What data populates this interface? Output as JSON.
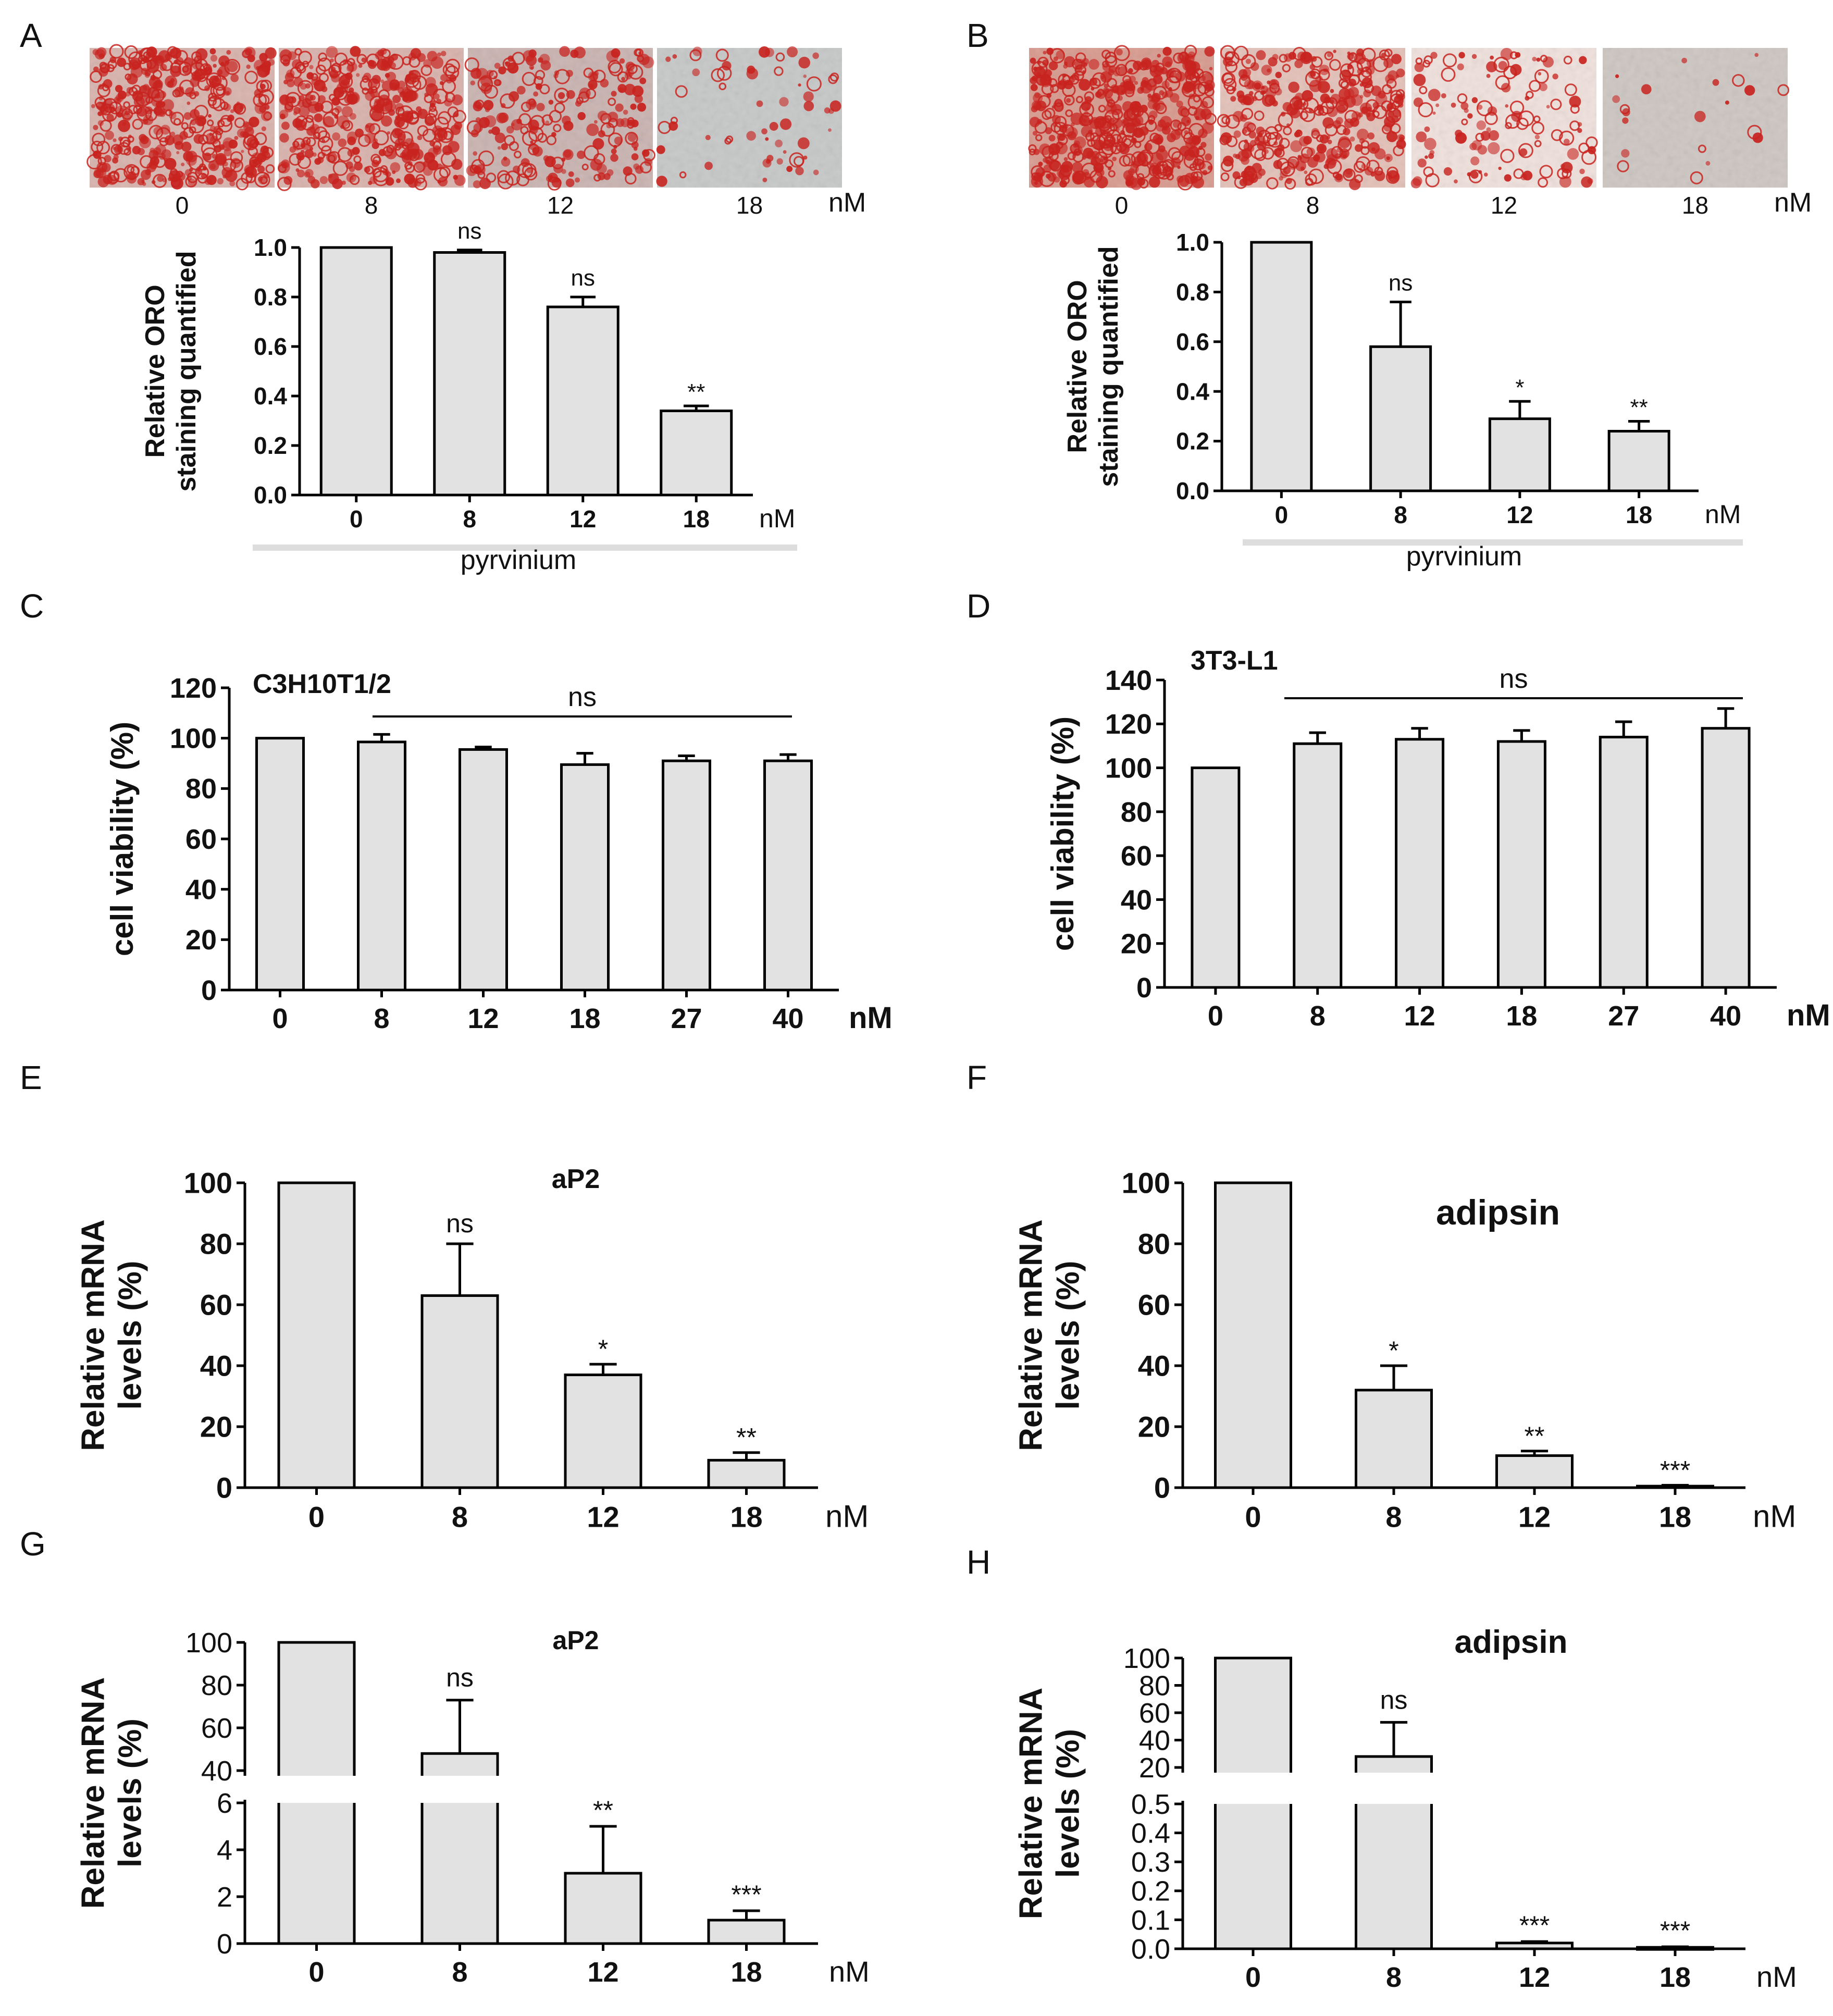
{
  "colors": {
    "bar_fill": "#e2e2e2",
    "bar_stroke": "#000000",
    "text": "#111111",
    "divider": "#dddddd",
    "stain_red": "#c8231f",
    "stain_bg_pink": "#ecd5d0",
    "stain_bg_grey": "#c9c4bf"
  },
  "panels": {
    "A": {
      "letter": "A",
      "micrographs": {
        "labels": [
          "0",
          "8",
          "12",
          "18"
        ],
        "unit": "nM",
        "red_density": [
          0.85,
          0.75,
          0.45,
          0.12
        ],
        "background": [
          "#d8b3ad",
          "#d9b2ac",
          "#c9b3b0",
          "#c6c8c8"
        ],
        "description": "Oil Red O stained C3H10T1/2 cells"
      },
      "group_label": "pyrvinium"
    },
    "B": {
      "letter": "B",
      "micrographs": {
        "labels": [
          "0",
          "8",
          "12",
          "18"
        ],
        "unit": "nM",
        "red_density": [
          0.95,
          0.7,
          0.25,
          0.04
        ],
        "background": [
          "#d89a8e",
          "#e3c1b8",
          "#f0e1dc",
          "#cdc6c2"
        ],
        "description": "Oil Red O stained 3T3-L1 cells"
      },
      "group_label": "pyrvinium"
    },
    "C": {
      "letter": "C"
    },
    "D": {
      "letter": "D"
    },
    "E": {
      "letter": "E"
    },
    "F": {
      "letter": "F"
    },
    "G": {
      "letter": "G"
    },
    "H": {
      "letter": "H"
    }
  },
  "chart_data": [
    {
      "panel": "A",
      "type": "bar",
      "ylabel": [
        "Relative ORO",
        "staining quantified"
      ],
      "xlabel_unit": "nM",
      "categories": [
        "0",
        "8",
        "12",
        "18"
      ],
      "values": [
        1.0,
        0.98,
        0.76,
        0.34
      ],
      "errors": [
        0,
        0.01,
        0.04,
        0.02
      ],
      "significance": [
        "",
        "ns",
        "ns",
        "**"
      ],
      "ylim": [
        0,
        1.0
      ],
      "yticks": [
        "0.0",
        "0.2",
        "0.4",
        "0.6",
        "0.8",
        "1.0"
      ],
      "group_label": "pyrvinium"
    },
    {
      "panel": "B",
      "type": "bar",
      "ylabel": [
        "Relative ORO",
        "staining quantified"
      ],
      "xlabel_unit": "nM",
      "categories": [
        "0",
        "8",
        "12",
        "18"
      ],
      "values": [
        1.0,
        0.58,
        0.29,
        0.24
      ],
      "errors": [
        0,
        0.18,
        0.07,
        0.04
      ],
      "significance": [
        "",
        "ns",
        "*",
        "**"
      ],
      "ylim": [
        0,
        1.0
      ],
      "yticks": [
        "0.0",
        "0.2",
        "0.4",
        "0.6",
        "0.8",
        "1.0"
      ],
      "group_label": "pyrvinium"
    },
    {
      "panel": "C",
      "type": "bar",
      "title": "C3H10T1/2",
      "ylabel": [
        "cell viability (%)"
      ],
      "xlabel_unit": "nM",
      "categories": [
        "0",
        "8",
        "12",
        "18",
        "27",
        "40"
      ],
      "values": [
        100,
        98.5,
        95.5,
        89.5,
        91,
        91
      ],
      "errors": [
        0,
        3,
        1,
        4.5,
        2,
        2.5
      ],
      "significance_line": "ns",
      "ylim": [
        0,
        120
      ],
      "yticks": [
        "0",
        "20",
        "40",
        "60",
        "80",
        "100",
        "120"
      ]
    },
    {
      "panel": "D",
      "type": "bar",
      "title": "3T3-L1",
      "ylabel": [
        "cell viability (%)"
      ],
      "xlabel_unit": "nM",
      "categories": [
        "0",
        "8",
        "12",
        "18",
        "27",
        "40"
      ],
      "values": [
        100,
        111,
        113,
        112,
        114,
        118
      ],
      "errors": [
        0,
        5,
        5,
        5,
        7,
        9
      ],
      "significance_line": "ns",
      "ylim": [
        0,
        140
      ],
      "yticks": [
        "0",
        "20",
        "40",
        "60",
        "80",
        "100",
        "120",
        "140"
      ]
    },
    {
      "panel": "E",
      "type": "bar",
      "title": "aP2",
      "ylabel": [
        "Relative mRNA",
        "levels (%)"
      ],
      "xlabel_unit": "nM",
      "categories": [
        "0",
        "8",
        "12",
        "18"
      ],
      "values": [
        100,
        63,
        37,
        9
      ],
      "errors": [
        0,
        17,
        3.5,
        2.5
      ],
      "significance": [
        "",
        "ns",
        "*",
        "**"
      ],
      "ylim": [
        0,
        100
      ],
      "yticks": [
        "0",
        "20",
        "40",
        "60",
        "80",
        "100"
      ]
    },
    {
      "panel": "F",
      "type": "bar",
      "title": "adipsin",
      "ylabel": [
        "Relative mRNA",
        "levels (%)"
      ],
      "xlabel_unit": "nM",
      "categories": [
        "0",
        "8",
        "12",
        "18"
      ],
      "values": [
        100,
        32,
        10.5,
        0.5
      ],
      "errors": [
        0,
        8,
        1.5,
        0.3
      ],
      "significance": [
        "",
        "*",
        "**",
        "***"
      ],
      "ylim": [
        0,
        100
      ],
      "yticks": [
        "0",
        "20",
        "40",
        "60",
        "80",
        "100"
      ]
    },
    {
      "panel": "G",
      "type": "bar",
      "title": "aP2",
      "ylabel": [
        "Relative mRNA",
        "levels (%)"
      ],
      "xlabel_unit": "nM",
      "categories": [
        "0",
        "8",
        "12",
        "18"
      ],
      "values": [
        100,
        48,
        3,
        1
      ],
      "errors": [
        0,
        25,
        2,
        0.4
      ],
      "significance": [
        "",
        "ns",
        "**",
        "***"
      ],
      "broken_axis": {
        "upper_range": [
          40,
          100
        ],
        "upper_ticks": [
          "40",
          "60",
          "80",
          "100"
        ],
        "lower_range": [
          0,
          6
        ],
        "lower_ticks": [
          "0",
          "2",
          "4",
          "6"
        ]
      }
    },
    {
      "panel": "H",
      "type": "bar",
      "title": "adipsin",
      "ylabel": [
        "Relative mRNA",
        "levels (%)"
      ],
      "xlabel_unit": "nM",
      "categories": [
        "0",
        "8",
        "12",
        "18"
      ],
      "values": [
        100,
        28,
        0.02,
        0.005
      ],
      "errors": [
        0,
        25,
        0.005,
        0.002
      ],
      "significance": [
        "",
        "ns",
        "***",
        "***"
      ],
      "broken_axis": {
        "upper_range": [
          20,
          100
        ],
        "upper_ticks": [
          "20",
          "40",
          "60",
          "80",
          "100"
        ],
        "lower_range": [
          0,
          0.5
        ],
        "lower_ticks": [
          "0.0",
          "0.1",
          "0.2",
          "0.3",
          "0.4",
          "0.5"
        ]
      }
    }
  ]
}
